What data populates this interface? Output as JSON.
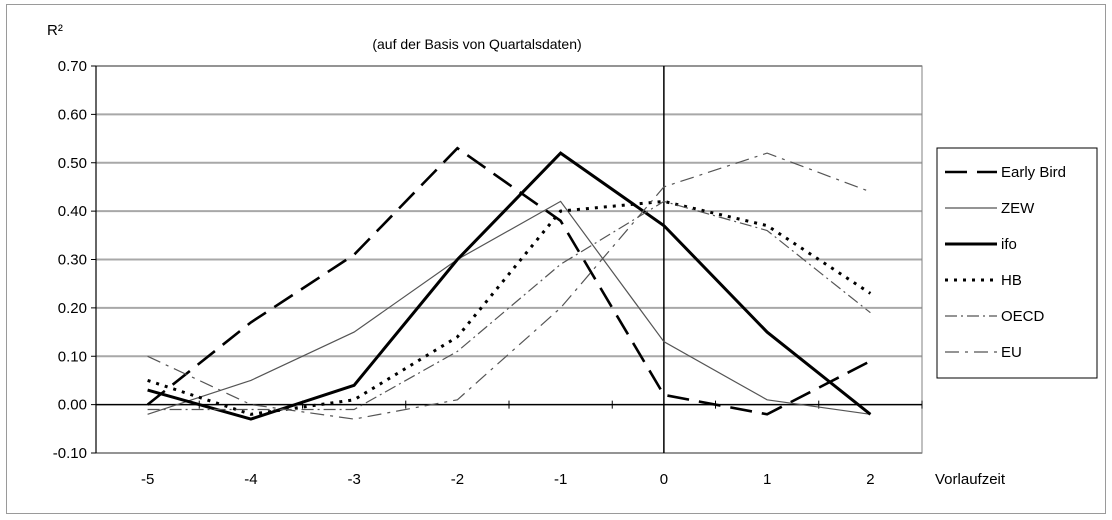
{
  "chart_data": {
    "type": "line",
    "title": "(auf der Basis von Quartalsdaten)",
    "ylabel": "R²",
    "xlabel": "Vorlaufzeit",
    "categories": [
      "-5",
      "-4",
      "-3",
      "-2",
      "-1",
      "0",
      "1",
      "2"
    ],
    "ylim": [
      -0.1,
      0.7
    ],
    "yticks": [
      "0.70",
      "0.60",
      "0.50",
      "0.40",
      "0.30",
      "0.20",
      "0.10",
      "0.00",
      "-0.10"
    ],
    "grid": "horizontal",
    "legend_position": "right",
    "series": [
      {
        "name": "Early Bird",
        "values": [
          0.0,
          0.17,
          0.31,
          0.53,
          0.38,
          0.02,
          -0.02,
          0.09
        ],
        "color": "#000000",
        "dash": "22,10",
        "width": 2.6
      },
      {
        "name": "ZEW",
        "values": [
          -0.02,
          0.05,
          0.15,
          0.3,
          0.42,
          0.13,
          0.01,
          -0.02
        ],
        "color": "#555555",
        "dash": "",
        "width": 1.2
      },
      {
        "name": "ifo",
        "values": [
          0.03,
          -0.03,
          0.04,
          0.3,
          0.52,
          0.37,
          0.15,
          -0.02
        ],
        "color": "#000000",
        "dash": "",
        "width": 3
      },
      {
        "name": "HB",
        "values": [
          0.05,
          -0.02,
          0.01,
          0.14,
          0.4,
          0.42,
          0.37,
          0.23
        ],
        "color": "#000000",
        "dash": "3,6",
        "width": 3
      },
      {
        "name": "OECD",
        "values": [
          -0.01,
          -0.01,
          -0.01,
          0.11,
          0.29,
          0.42,
          0.36,
          0.19
        ],
        "color": "#555555",
        "dash": "12,4,2,4",
        "width": 1.2
      },
      {
        "name": "EU",
        "values": [
          0.1,
          0.0,
          -0.03,
          0.01,
          0.2,
          0.45,
          0.52,
          0.44
        ],
        "color": "#555555",
        "dash": "14,6,3,6",
        "width": 1.2
      }
    ]
  }
}
